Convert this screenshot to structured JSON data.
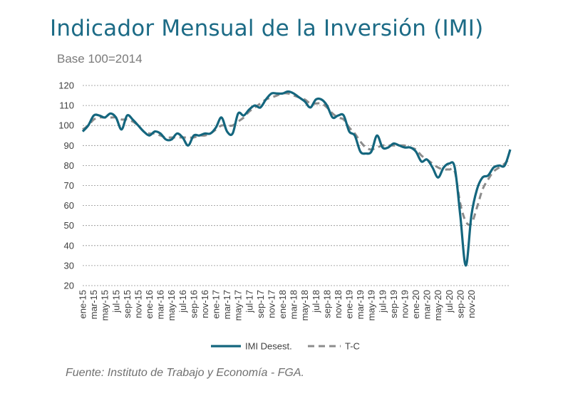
{
  "title": "Indicador Mensual de la Inversión (IMI)",
  "subtitle": "Base 100=2014",
  "source": "Fuente: Instituto de Trabajo y Economía - FGA.",
  "colors": {
    "imi": "#14667e",
    "tc": "#8c8c8c",
    "title": "#1c6b86"
  },
  "chart_data": {
    "type": "line",
    "title": "",
    "ylim": [
      20,
      120
    ],
    "yticks": [
      20,
      30,
      40,
      50,
      60,
      70,
      80,
      90,
      100,
      110,
      120
    ],
    "grid": true,
    "legend_position": "bottom",
    "xtick_labels": [
      "ene-15",
      "mar-15",
      "may-15",
      "jul-15",
      "sep-15",
      "nov-15",
      "ene-16",
      "mar-16",
      "may-16",
      "jul-16",
      "sep-16",
      "nov-16",
      "ene-17",
      "mar-17",
      "may-17",
      "jul-17",
      "sep-17",
      "nov-17",
      "ene-18",
      "mar-18",
      "may-18",
      "jul-18",
      "sep-18",
      "nov-18",
      "ene-19",
      "mar-19",
      "may-19",
      "jul-19",
      "sep-19",
      "nov-19",
      "ene-20",
      "mar-20",
      "may-20",
      "jul-20",
      "sep-20",
      "nov-20"
    ],
    "series": [
      {
        "name": "IMI Desest.",
        "style": "solid",
        "values": [
          97,
          100,
          105,
          105,
          104,
          106,
          104,
          98,
          105,
          103,
          100,
          97,
          95,
          97,
          96,
          93,
          93,
          96,
          94,
          90,
          95,
          95,
          96,
          96,
          99,
          104,
          97,
          96,
          106,
          105,
          108,
          110,
          109,
          113,
          116,
          116,
          116,
          117,
          116,
          114,
          112,
          109,
          113,
          113,
          110,
          104,
          105,
          105,
          97,
          95,
          87,
          86,
          87,
          95,
          89,
          89,
          91,
          90,
          89,
          89,
          87,
          82,
          83,
          79,
          74,
          79,
          81,
          79,
          55,
          30,
          55,
          68,
          74,
          75,
          79,
          80,
          80,
          88
        ]
      },
      {
        "name": "T-C",
        "style": "dashed",
        "values": [
          98,
          100,
          103,
          104,
          104,
          104,
          104,
          103,
          103,
          102,
          100,
          97,
          96,
          96,
          95,
          94,
          94,
          94,
          94,
          94,
          94,
          95,
          95,
          96,
          98,
          100,
          100,
          100,
          102,
          104,
          107,
          109,
          111,
          113,
          114,
          115,
          116,
          116,
          115,
          114,
          113,
          111,
          111,
          111,
          109,
          106,
          104,
          103,
          99,
          96,
          92,
          89,
          88,
          89,
          90,
          90,
          90,
          90,
          90,
          89,
          88,
          85,
          83,
          81,
          79,
          78,
          78,
          77,
          61,
          52,
          51,
          59,
          68,
          73,
          77,
          79,
          81,
          84
        ]
      }
    ]
  }
}
